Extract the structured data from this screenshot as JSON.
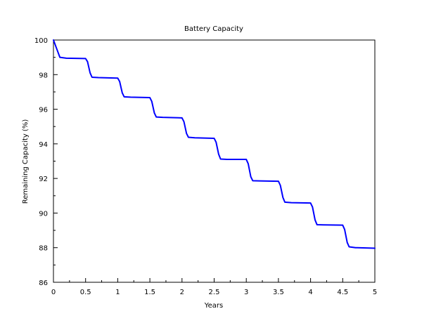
{
  "chart_data": {
    "type": "line",
    "title": "Battery Capacity",
    "xlabel": "Years",
    "ylabel": "Remaining Capacity (%)",
    "xlim": [
      0,
      5
    ],
    "ylim": [
      86,
      100
    ],
    "x_ticks": [
      "0",
      "0.5",
      "1",
      "1.5",
      "2",
      "2.5",
      "3",
      "3.5",
      "4",
      "4.5",
      "5"
    ],
    "y_ticks": [
      "86",
      "88",
      "90",
      "92",
      "94",
      "96",
      "98",
      "100"
    ],
    "grid": false,
    "legend": "none",
    "series": [
      {
        "color": "#0000ff",
        "x": [
          0.0,
          0.05,
          0.1,
          0.2,
          0.5,
          0.53,
          0.57,
          0.6,
          0.7,
          1.0,
          1.03,
          1.07,
          1.1,
          1.2,
          1.5,
          1.53,
          1.57,
          1.6,
          1.7,
          2.0,
          2.03,
          2.07,
          2.1,
          2.2,
          2.5,
          2.53,
          2.57,
          2.6,
          2.7,
          3.0,
          3.03,
          3.07,
          3.1,
          3.2,
          3.5,
          3.53,
          3.57,
          3.6,
          3.7,
          4.0,
          4.03,
          4.07,
          4.1,
          4.2,
          4.5,
          4.53,
          4.57,
          4.6,
          4.7,
          5.0
        ],
        "y": [
          100.0,
          99.5,
          99.0,
          98.95,
          98.93,
          98.75,
          98.1,
          97.85,
          97.83,
          97.8,
          97.6,
          96.95,
          96.72,
          96.7,
          96.67,
          96.45,
          95.78,
          95.55,
          95.53,
          95.5,
          95.28,
          94.6,
          94.38,
          94.35,
          94.32,
          94.1,
          93.4,
          93.12,
          93.1,
          93.1,
          92.85,
          92.1,
          91.87,
          91.86,
          91.84,
          91.6,
          90.9,
          90.63,
          90.6,
          90.58,
          90.35,
          89.6,
          89.33,
          89.32,
          89.3,
          89.05,
          88.3,
          88.05,
          88.0,
          87.97
        ]
      }
    ]
  }
}
